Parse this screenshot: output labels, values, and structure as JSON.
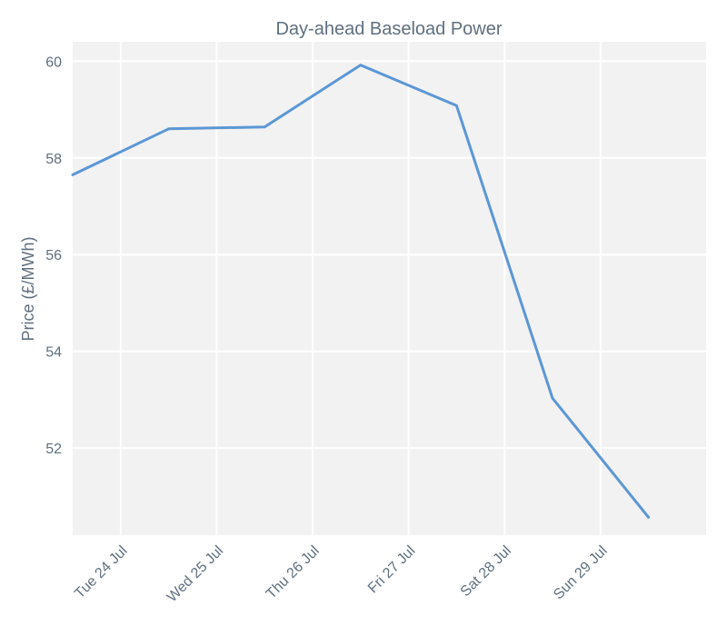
{
  "chart_data": {
    "type": "line",
    "title": "Day-ahead Baseload Power",
    "xlabel": "",
    "ylabel": "Price (£/MWh)",
    "x_tick_labels": [
      "Tue 24 Jul",
      "Wed 25 Jul",
      "Thu 26 Jul",
      "Fri 27 Jul",
      "Sat 28 Jul",
      "Sun 29 Jul"
    ],
    "y_ticks": [
      52,
      54,
      56,
      58,
      60
    ],
    "ylim": [
      50.2,
      60.4
    ],
    "x_range_days": [
      -0.5,
      6.1
    ],
    "x_tick_positions": [
      0,
      1,
      2,
      3,
      4,
      5
    ],
    "series": [
      {
        "x": [
          -0.5,
          0.5,
          1.5,
          2.5,
          3.5,
          4.5,
          5.5
        ],
        "values": [
          57.65,
          58.6,
          58.64,
          59.92,
          59.08,
          53.03,
          50.57
        ]
      }
    ],
    "grid": true,
    "legend": "none",
    "colors": {
      "line": "#5b97d5",
      "plot_background": "#f2f2f2",
      "grid": "#ffffff",
      "text": "#5f6f7f"
    }
  }
}
